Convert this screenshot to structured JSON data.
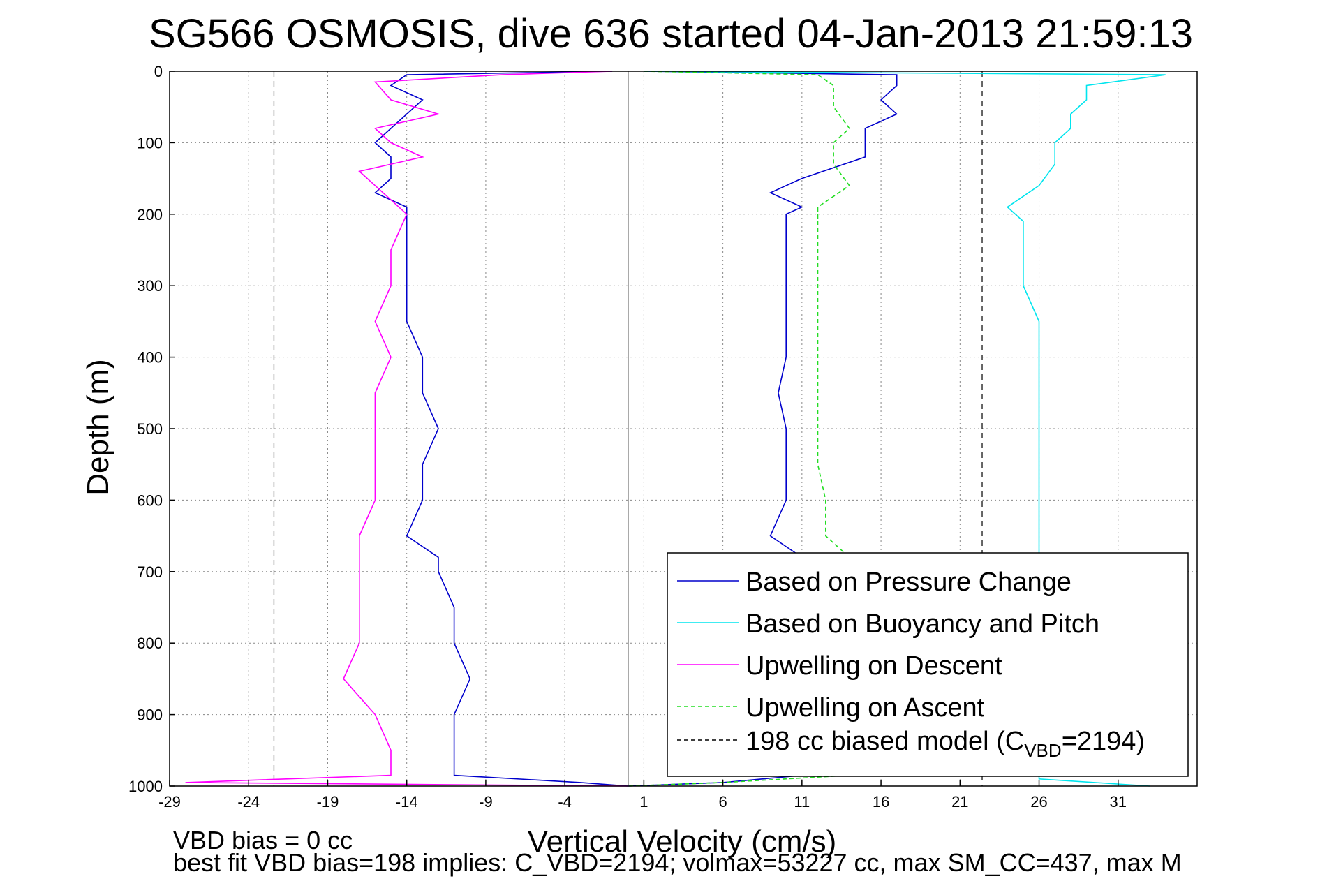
{
  "chart_data": {
    "type": "line",
    "title": "SG566 OSMOSIS, dive 636 started 04-Jan-2013 21:59:13",
    "xlabel": "Vertical Velocity (cm/s)",
    "ylabel": "Depth (m)",
    "xlim": [
      -29,
      36
    ],
    "ylim": [
      1000,
      0
    ],
    "y_reversed": true,
    "xticks": [
      -29,
      -24,
      -19,
      -14,
      -9,
      -4,
      1,
      6,
      11,
      16,
      21,
      26,
      31
    ],
    "yticks": [
      0,
      100,
      200,
      300,
      400,
      500,
      600,
      700,
      800,
      900,
      1000
    ],
    "grid": true,
    "legend_position": "bottom-right",
    "reference_lines": [
      {
        "name": "198 cc biased model",
        "values": [
          -22.4,
          22.4
        ],
        "style": "dashed",
        "color": "#000000"
      },
      {
        "name": "zero line",
        "values": [
          0
        ],
        "style": "solid",
        "color": "#000000"
      }
    ],
    "series": [
      {
        "name": "Based on Pressure Change",
        "color": "#0000cc",
        "style": "solid",
        "depth": [
          0,
          5,
          20,
          40,
          60,
          80,
          100,
          120,
          150,
          170,
          190,
          200,
          230,
          260,
          300,
          350,
          400,
          450,
          500,
          550,
          600,
          650,
          680,
          700,
          750,
          800,
          850,
          900,
          950,
          985,
          995,
          1000
        ],
        "down": [
          -1,
          -14,
          -15,
          -13,
          -14,
          -15,
          -16,
          -15,
          -15,
          -16,
          -14,
          -14,
          -14,
          -14,
          -14,
          -14,
          -13,
          -13,
          -12,
          -13,
          -13,
          -14,
          -12,
          -12,
          -11,
          -11,
          -10,
          -11,
          -11,
          -11,
          -3,
          0
        ],
        "up": [
          1,
          17,
          17,
          16,
          17,
          15,
          15,
          15,
          11,
          9,
          11,
          10,
          10,
          10,
          10,
          10,
          10,
          9.5,
          10,
          10,
          10,
          9,
          11,
          11,
          11,
          11,
          11,
          11,
          11,
          11,
          6,
          0
        ]
      },
      {
        "name": "Based on Buoyancy and Pitch",
        "color": "#00e5ee",
        "style": "solid",
        "depth": [
          0,
          5,
          20,
          40,
          60,
          80,
          100,
          130,
          160,
          190,
          210,
          250,
          300,
          350,
          400,
          450,
          500,
          550,
          600,
          650,
          680,
          700,
          800,
          900,
          990,
          1000
        ],
        "up": [
          1,
          34,
          29,
          29,
          28,
          28,
          27,
          27,
          26,
          24,
          25,
          25,
          25,
          26,
          26,
          26,
          26,
          26,
          26,
          26,
          26,
          26,
          26,
          26,
          26,
          33
        ]
      },
      {
        "name": "Upwelling on Descent",
        "color": "#ff00ff",
        "style": "solid",
        "depth": [
          0,
          5,
          15,
          40,
          60,
          80,
          100,
          120,
          140,
          160,
          200,
          250,
          290,
          300,
          350,
          400,
          450,
          500,
          550,
          600,
          650,
          700,
          750,
          800,
          850,
          900,
          950,
          985,
          995,
          1000
        ],
        "values": [
          -1,
          -8,
          -16,
          -15,
          -12,
          -16,
          -15,
          -13,
          -17,
          -16,
          -14,
          -15,
          -15,
          -15,
          -16,
          -15,
          -16,
          -16,
          -16,
          -16,
          -17,
          -17,
          -17,
          -17,
          -18,
          -16,
          -15,
          -15,
          -28,
          0
        ]
      },
      {
        "name": "Upwelling on Ascent",
        "color": "#22dd22",
        "style": "dashed",
        "depth": [
          0,
          5,
          20,
          50,
          80,
          100,
          130,
          160,
          190,
          200,
          250,
          300,
          350,
          400,
          450,
          500,
          550,
          600,
          650,
          680,
          700,
          750,
          800,
          850,
          900,
          950,
          985,
          995,
          1000
        ],
        "values": [
          1,
          12,
          13,
          13,
          14,
          13,
          13,
          14,
          12,
          12,
          12,
          12,
          12,
          12,
          12,
          12,
          12,
          12.5,
          12.5,
          14,
          14,
          14,
          14,
          14,
          14,
          14,
          14,
          6,
          0
        ]
      }
    ],
    "legend": [
      {
        "label": "Based on Pressure Change",
        "color": "#0000cc",
        "dash": false
      },
      {
        "label": "Based on Buoyancy and Pitch",
        "color": "#00e5ee",
        "dash": false
      },
      {
        "label": "Upwelling on Descent",
        "color": "#ff00ff",
        "dash": false
      },
      {
        "label": "Upwelling on Ascent",
        "color": "#22dd22",
        "dash": true
      },
      {
        "label": "198 cc biased model (C",
        "label_sub": "VBD",
        "label_tail": "=2194)",
        "color": "#000000",
        "dash": true
      }
    ]
  },
  "notes": {
    "vbd_bias": "VBD bias = 0 cc",
    "best_fit": "best fit VBD bias=198 implies: C_VBD=2194; volmax=53227 cc, max SM_CC=437, max M"
  }
}
